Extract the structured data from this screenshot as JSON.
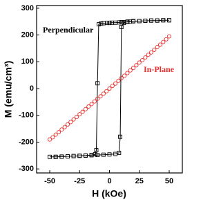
{
  "chart_data": {
    "type": "scatter",
    "xlabel": "H (kOe)",
    "ylabel": "M (emu/cm³)",
    "xlim": [
      -61,
      61
    ],
    "ylim": [
      -315,
      310
    ],
    "xticks": [
      -50,
      -25,
      0,
      25,
      50
    ],
    "yticks": [
      -300,
      -200,
      -100,
      0,
      100,
      200,
      300
    ],
    "annotations": [
      "Perpendicular",
      "In-Plane"
    ],
    "series": [
      {
        "name": "Perpendicular",
        "color": "#000000",
        "marker": "square",
        "line": true,
        "x": [
          50,
          45,
          40,
          35,
          30,
          25,
          20,
          17,
          15,
          12,
          10,
          8,
          5,
          2,
          0,
          -2,
          -5,
          -7,
          -9,
          -10,
          -11,
          -12,
          -15,
          -20,
          -25,
          -30,
          -35,
          -40,
          -45,
          -50,
          -45,
          -40,
          -35,
          -30,
          -25,
          -20,
          -15,
          -10,
          -5,
          0,
          5,
          8,
          9,
          10,
          12,
          15,
          20,
          25,
          30,
          35,
          40,
          45,
          50
        ],
        "values": [
          255,
          255,
          254,
          254,
          253,
          252,
          251,
          250,
          249,
          248,
          248,
          247,
          246,
          246,
          245,
          245,
          244,
          243,
          240,
          20,
          -230,
          -245,
          -248,
          -250,
          -251,
          -252,
          -253,
          -254,
          -255,
          -255,
          -255,
          -254,
          -253,
          -252,
          -251,
          -250,
          -249,
          -248,
          -247,
          -246,
          -244,
          -240,
          -180,
          230,
          245,
          250,
          252,
          252,
          253,
          254,
          254,
          255,
          255
        ]
      },
      {
        "name": "In-Plane",
        "color": "#e8312f",
        "marker": "circle",
        "line": false,
        "x": [
          -50,
          -47.5,
          -45,
          -42.5,
          -40,
          -37.5,
          -35,
          -32.5,
          -30,
          -27.5,
          -25,
          -22.5,
          -20,
          -17.5,
          -15,
          -12.5,
          -10,
          -7.5,
          -5,
          -2.5,
          0,
          2.5,
          5,
          7.5,
          10,
          12.5,
          15,
          17.5,
          20,
          22.5,
          25,
          27.5,
          30,
          32.5,
          35,
          37.5,
          40,
          42.5,
          45,
          47.5,
          50
        ],
        "values": [
          -190,
          -182,
          -172,
          -163,
          -153,
          -144,
          -134,
          -125,
          -115,
          -106,
          -96,
          -87,
          -77,
          -67,
          -58,
          -48,
          -38,
          -29,
          -19,
          -10,
          0,
          10,
          19,
          29,
          39,
          48,
          58,
          68,
          77,
          87,
          97,
          106,
          116,
          126,
          135,
          145,
          155,
          164,
          174,
          184,
          195
        ]
      }
    ]
  }
}
